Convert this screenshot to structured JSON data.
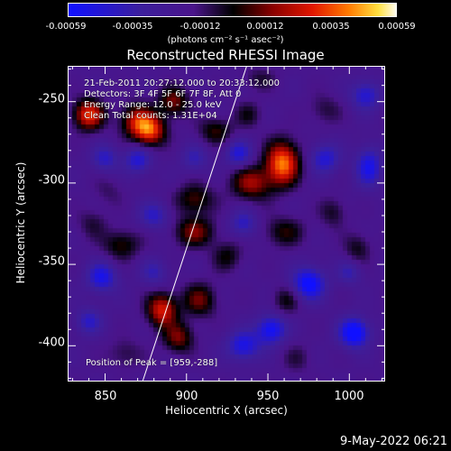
{
  "colorbar": {
    "ticks": [
      "-0.00059",
      "-0.00035",
      "-0.00012",
      "0.00012",
      "0.00035",
      "0.00059"
    ],
    "units": "(photons cm⁻² s⁻¹ asec⁻²)"
  },
  "annotations": {
    "time_range": "21-Feb-2011 20:27:12.000 to 20:33:12.000",
    "detectors": "Detectors: 3F 4F 5F 6F 7F 8F, Att 0",
    "energy": "Energy Range: 12.0 - 25.0 keV",
    "clean": "Clean    Total counts: 1.31E+04",
    "peak": "Position of Peak = [959,-288]"
  },
  "timestamp": "9-May-2022 06:21",
  "chart_data": {
    "type": "heatmap",
    "title": "Reconstructed RHESSI Image",
    "xlabel": "Heliocentric X (arcsec)",
    "ylabel": "Heliocentric Y (arcsec)",
    "xlim": [
      827,
      1022
    ],
    "ylim": [
      -422,
      -228
    ],
    "xticks": [
      850,
      900,
      950,
      1000
    ],
    "yticks": [
      -250,
      -300,
      -350,
      -400
    ],
    "zlim": [
      -0.00059,
      0.00059
    ],
    "colormap": [
      "#1010ff",
      "#3c1f9c",
      "#4a148a",
      "#000000",
      "#8a0000",
      "#e01600",
      "#ff7a00",
      "#ffe040",
      "#ffffff"
    ],
    "limb_line": [
      [
        873,
        -422
      ],
      [
        937,
        -228
      ]
    ],
    "sources": [
      {
        "x": 959,
        "y": -288,
        "sx": 10,
        "sy": 13,
        "value": 0.00059
      },
      {
        "x": 940,
        "y": -300,
        "sx": 12,
        "sy": 10,
        "value": 0.00035
      },
      {
        "x": 840,
        "y": -258,
        "sx": 9,
        "sy": 9,
        "value": 0.0005
      },
      {
        "x": 870,
        "y": -262,
        "sx": 10,
        "sy": 10,
        "value": 0.0004
      },
      {
        "x": 878,
        "y": -268,
        "sx": 9,
        "sy": 9,
        "value": 0.00045
      },
      {
        "x": 892,
        "y": -250,
        "sx": 9,
        "sy": 9,
        "value": 0.0003
      },
      {
        "x": 918,
        "y": -268,
        "sx": 10,
        "sy": 8,
        "value": 0.00022
      },
      {
        "x": 905,
        "y": -310,
        "sx": 11,
        "sy": 9,
        "value": 0.00025
      },
      {
        "x": 905,
        "y": -330,
        "sx": 12,
        "sy": 9,
        "value": 0.0003
      },
      {
        "x": 860,
        "y": -338,
        "sx": 11,
        "sy": 9,
        "value": 0.00022
      },
      {
        "x": 885,
        "y": -378,
        "sx": 9,
        "sy": 10,
        "value": 0.00045
      },
      {
        "x": 895,
        "y": -395,
        "sx": 9,
        "sy": 9,
        "value": 0.0003
      },
      {
        "x": 908,
        "y": -372,
        "sx": 10,
        "sy": 10,
        "value": 0.00028
      },
      {
        "x": 925,
        "y": -345,
        "sx": 9,
        "sy": 9,
        "value": 0.00018
      },
      {
        "x": 960,
        "y": -330,
        "sx": 12,
        "sy": 9,
        "value": 0.0002
      },
      {
        "x": 990,
        "y": -318,
        "sx": 8,
        "sy": 9,
        "value": 0.00015
      },
      {
        "x": 1005,
        "y": -340,
        "sx": 8,
        "sy": 9,
        "value": 0.00016
      },
      {
        "x": 962,
        "y": -372,
        "sx": 9,
        "sy": 9,
        "value": 0.00018
      },
      {
        "x": 985,
        "y": -255,
        "sx": 10,
        "sy": 9,
        "value": 0.00012
      },
      {
        "x": 862,
        "y": -405,
        "sx": 10,
        "sy": 9,
        "value": 0.00012
      },
      {
        "x": 968,
        "y": -408,
        "sx": 9,
        "sy": 9,
        "value": 0.0001
      },
      {
        "x": 938,
        "y": -258,
        "sx": 8,
        "sy": 8,
        "value": 0.00015
      },
      {
        "x": 945,
        "y": -236,
        "sx": 10,
        "sy": 7,
        "value": 0.00012
      },
      {
        "x": 852,
        "y": -305,
        "sx": 9,
        "sy": 9,
        "value": 8e-05
      },
      {
        "x": 842,
        "y": -325,
        "sx": 9,
        "sy": 9,
        "value": 0.00012
      },
      {
        "x": 975,
        "y": -362,
        "sx": 10,
        "sy": 10,
        "value": -0.00045
      },
      {
        "x": 1003,
        "y": -392,
        "sx": 9,
        "sy": 9,
        "value": -0.0005
      },
      {
        "x": 952,
        "y": -390,
        "sx": 9,
        "sy": 9,
        "value": -0.0004
      },
      {
        "x": 848,
        "y": -358,
        "sx": 9,
        "sy": 9,
        "value": -0.00035
      },
      {
        "x": 935,
        "y": -400,
        "sx": 10,
        "sy": 9,
        "value": -0.00035
      },
      {
        "x": 1012,
        "y": -290,
        "sx": 8,
        "sy": 12,
        "value": -0.00035
      },
      {
        "x": 870,
        "y": -286,
        "sx": 8,
        "sy": 8,
        "value": -0.0003
      },
      {
        "x": 985,
        "y": -285,
        "sx": 9,
        "sy": 9,
        "value": -0.0003
      },
      {
        "x": 932,
        "y": -282,
        "sx": 8,
        "sy": 8,
        "value": -0.0003
      },
      {
        "x": 1010,
        "y": -246,
        "sx": 9,
        "sy": 9,
        "value": -0.0003
      },
      {
        "x": 935,
        "y": -325,
        "sx": 8,
        "sy": 8,
        "value": -0.00025
      },
      {
        "x": 880,
        "y": -320,
        "sx": 9,
        "sy": 8,
        "value": -0.00025
      },
      {
        "x": 850,
        "y": -285,
        "sx": 8,
        "sy": 8,
        "value": -0.00025
      },
      {
        "x": 905,
        "y": -285,
        "sx": 8,
        "sy": 8,
        "value": -0.0002
      },
      {
        "x": 840,
        "y": -385,
        "sx": 8,
        "sy": 8,
        "value": -0.00025
      },
      {
        "x": 880,
        "y": -355,
        "sx": 8,
        "sy": 8,
        "value": -0.0002
      },
      {
        "x": 1000,
        "y": -355,
        "sx": 7,
        "sy": 7,
        "value": -0.0002
      }
    ]
  }
}
